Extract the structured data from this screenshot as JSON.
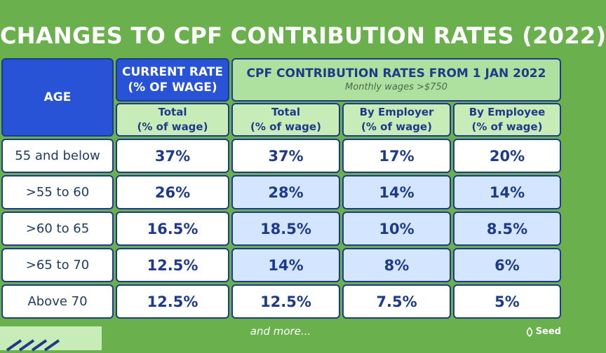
{
  "title": "CHANGES TO CPF CONTRIBUTION RATES (2022)",
  "headers": {
    "age": "AGE",
    "current_rate_line1": "CURRENT RATE",
    "current_rate_line2": "(% OF WAGE)",
    "new_rates_title": "CPF CONTRIBUTION RATES FROM 1 JAN 2022",
    "new_rates_note": "Monthly wages >$750"
  },
  "subheaders": [
    {
      "line1": "Total",
      "line2": "(% of wage)"
    },
    {
      "line1": "Total",
      "line2": "(% of wage)"
    },
    {
      "line1": "By Employer",
      "line2": "(% of wage)"
    },
    {
      "line1": "By Employee",
      "line2": "(% of wage)"
    }
  ],
  "rows": [
    {
      "age": "55 and below",
      "current": "37%",
      "total": "37%",
      "employer": "17%",
      "employee": "20%"
    },
    {
      "age": ">55 to 60",
      "current": "26%",
      "total": "28%",
      "employer": "14%",
      "employee": "14%"
    },
    {
      "age": ">60 to 65",
      "current": "16.5%",
      "total": "18.5%",
      "employer": "10%",
      "employee": "8.5%"
    },
    {
      "age": ">65 to 70",
      "current": "12.5%",
      "total": "14%",
      "employer": "8%",
      "employee": "6%"
    },
    {
      "age": "Above 70",
      "current": "12.5%",
      "total": "12.5%",
      "employer": "7.5%",
      "employee": "5%"
    }
  ],
  "footer": {
    "note": "and more...",
    "logo_text": "Seed"
  },
  "colors": {
    "background": "#6ab04c",
    "header_blue": "#2853d6",
    "header_green": "#aee0a0",
    "changed_cell": "#d4e6ff",
    "text_navy": "#1e3a8a"
  }
}
